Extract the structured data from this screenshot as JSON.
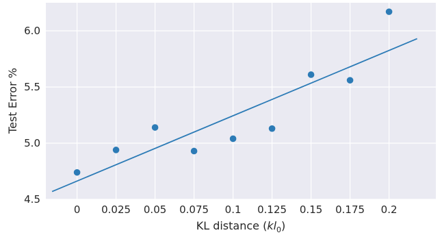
{
  "chart_data": {
    "type": "scatter",
    "title": "",
    "xlabel": "KL distance (",
    "xlabel_math_italic": "kl",
    "xlabel_math_sub": "0",
    "xlabel_suffix": ")",
    "ylabel": "Test Error %",
    "xlim": [
      -0.02,
      0.23
    ],
    "ylim": [
      4.5,
      6.25
    ],
    "grid": true,
    "background": "#EAEAF2",
    "x_ticks": [
      0,
      0.025,
      0.05,
      0.075,
      0.1,
      0.125,
      0.15,
      0.175,
      0.2
    ],
    "x_tick_labels": [
      "0",
      "0.025",
      "0.05",
      "0.075",
      "0.1",
      "0.125",
      "0.15",
      "0.175",
      "0.2"
    ],
    "y_ticks": [
      4.5,
      5.0,
      5.5,
      6.0
    ],
    "y_tick_labels": [
      "4.5",
      "5.0",
      "5.5",
      "6.0"
    ],
    "series": [
      {
        "kind": "points",
        "color": "#2C7BB6",
        "x": [
          0,
          0.025,
          0.05,
          0.075,
          0.1,
          0.125,
          0.15,
          0.175,
          0.2
        ],
        "y": [
          4.74,
          4.94,
          5.14,
          4.93,
          5.04,
          5.13,
          5.61,
          5.56,
          6.17
        ]
      },
      {
        "kind": "fit-line",
        "color": "#2C7BB6",
        "x": [
          -0.016,
          0.218
        ],
        "y": [
          4.57,
          5.93
        ]
      }
    ]
  }
}
